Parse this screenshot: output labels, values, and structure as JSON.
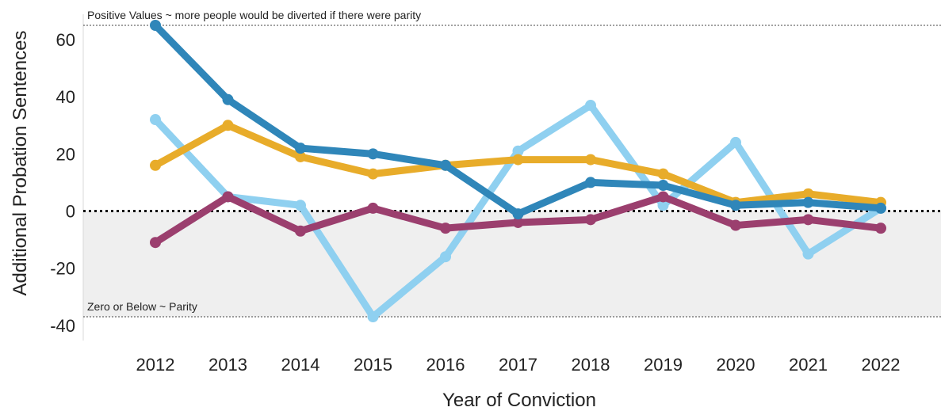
{
  "chart_data": {
    "type": "line",
    "title": "",
    "xlabel": "Year of Conviction",
    "ylabel": "Additional Probation Sentences",
    "ylim": [
      -40,
      65
    ],
    "yticks": [
      -40,
      -20,
      0,
      20,
      40,
      60
    ],
    "categories": [
      "2012",
      "2013",
      "2014",
      "2015",
      "2016",
      "2017",
      "2018",
      "2019",
      "2020",
      "2021",
      "2022"
    ],
    "grid": false,
    "legend": "none",
    "series": [
      {
        "color": "#8fd0f0",
        "values": [
          32,
          5,
          2,
          -37,
          -16,
          21,
          37,
          2,
          24,
          -15,
          1
        ]
      },
      {
        "color": "#e8ac2a",
        "values": [
          16,
          30,
          19,
          13,
          16,
          18,
          18,
          13,
          3,
          6,
          3
        ]
      },
      {
        "color": "#9b3f6e",
        "values": [
          -11,
          5,
          -7,
          1,
          -6,
          -4,
          -3,
          5,
          -5,
          -3,
          -6
        ]
      },
      {
        "color": "#2f86b9",
        "values": [
          65,
          39,
          22,
          20,
          16,
          -1,
          10,
          9,
          2,
          3,
          1
        ]
      }
    ],
    "reference_lines": [
      {
        "value": 65,
        "label": "Positive Values ~ more people would be diverted if there were parity"
      },
      {
        "value": 0,
        "label": ""
      },
      {
        "value": -37,
        "label": "Zero or Below ~ Parity"
      }
    ],
    "shaded_region": {
      "from": -37,
      "to": 0,
      "color": "#efefef"
    }
  }
}
